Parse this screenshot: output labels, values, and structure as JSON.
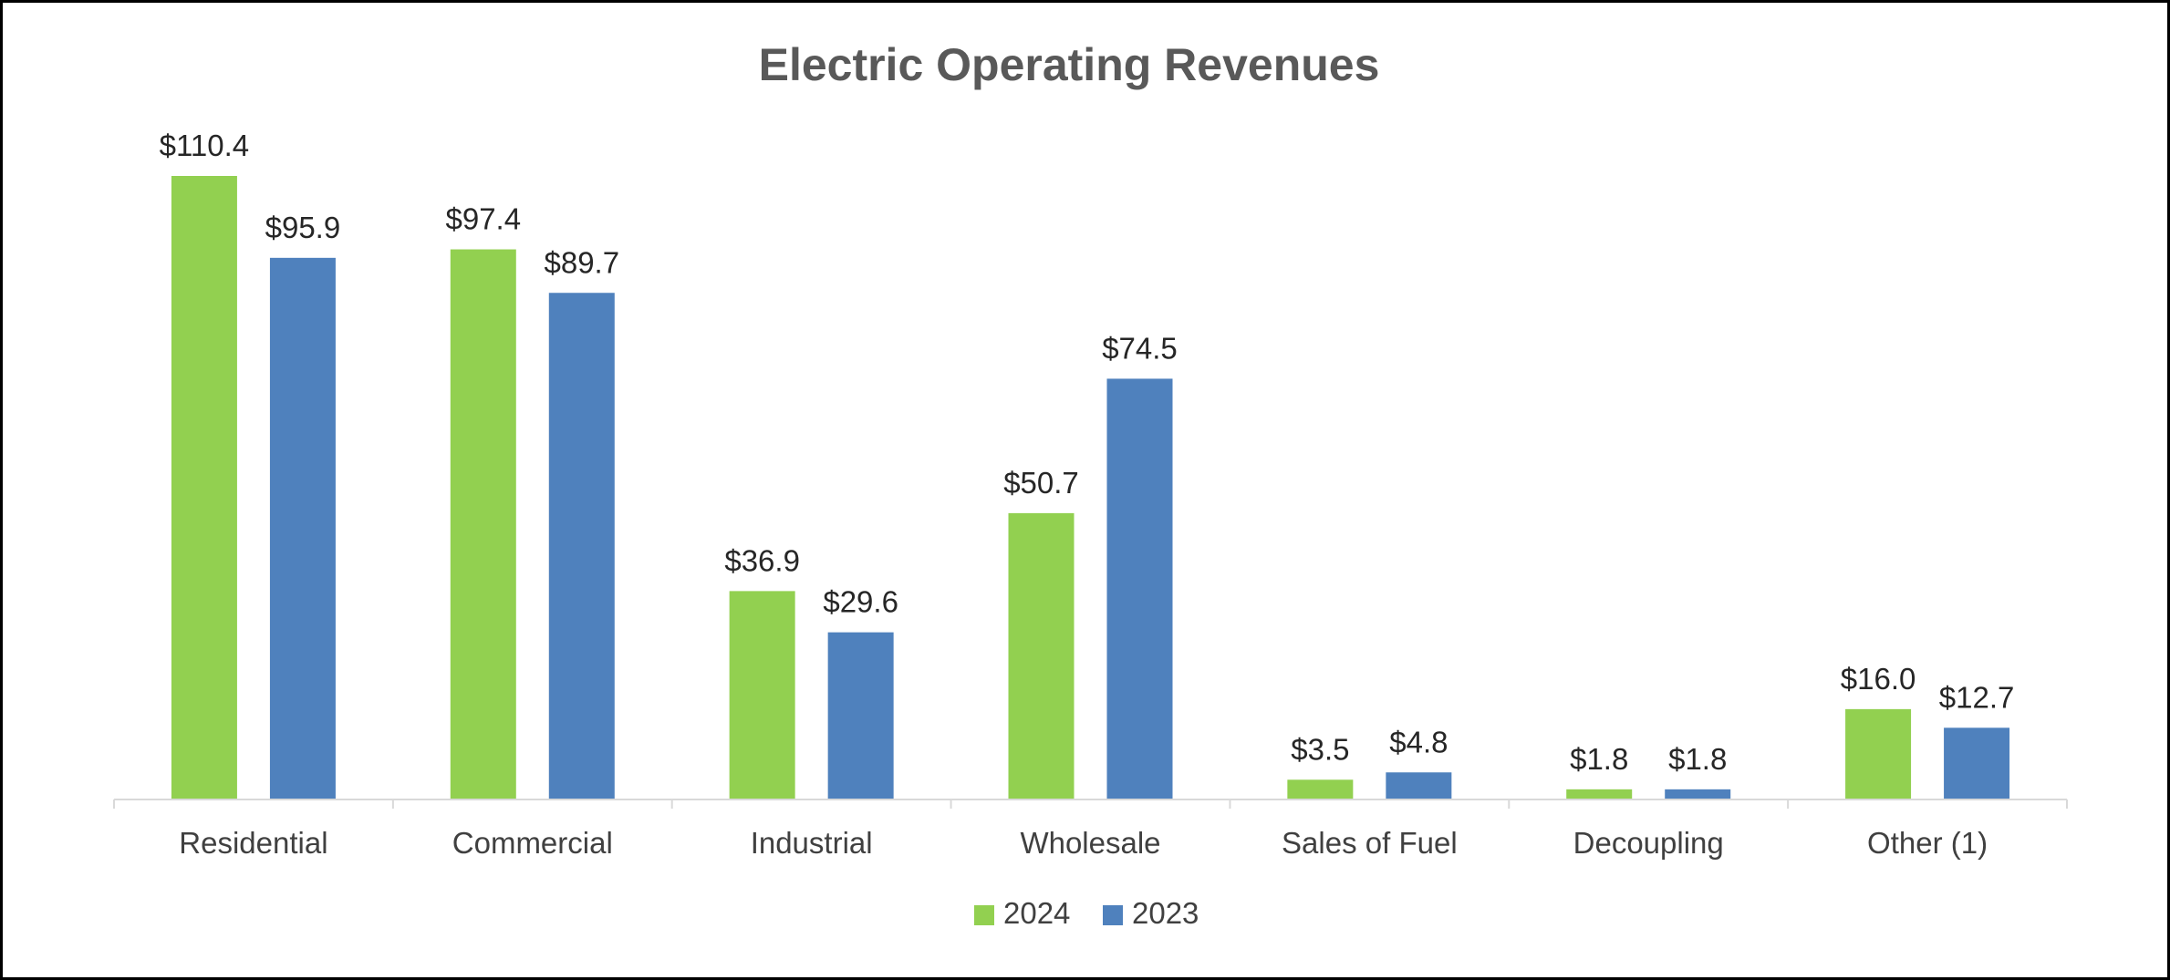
{
  "chart_data": {
    "type": "bar",
    "title": "Electric Operating Revenues",
    "xlabel": "",
    "ylabel": "",
    "ylim": [
      0,
      115
    ],
    "grid": false,
    "legend_position": "bottom",
    "categories": [
      "Residential",
      "Commercial",
      "Industrial",
      "Wholesale",
      "Sales of Fuel",
      "Decoupling",
      "Other (1)"
    ],
    "series": [
      {
        "name": "2024",
        "color": "#92D050",
        "values": [
          110.4,
          97.4,
          36.9,
          50.7,
          3.5,
          1.8,
          16.0
        ],
        "labels": [
          "$110.4",
          "$97.4",
          "$36.9",
          "$50.7",
          "$3.5",
          "$1.8",
          "$16.0"
        ]
      },
      {
        "name": "2023",
        "color": "#4F81BD",
        "values": [
          95.9,
          89.7,
          29.6,
          74.5,
          4.8,
          1.8,
          12.7
        ],
        "labels": [
          "$95.9",
          "$89.7",
          "$29.6",
          "$74.5",
          "$4.8",
          "$1.8",
          "$12.7"
        ]
      }
    ]
  }
}
